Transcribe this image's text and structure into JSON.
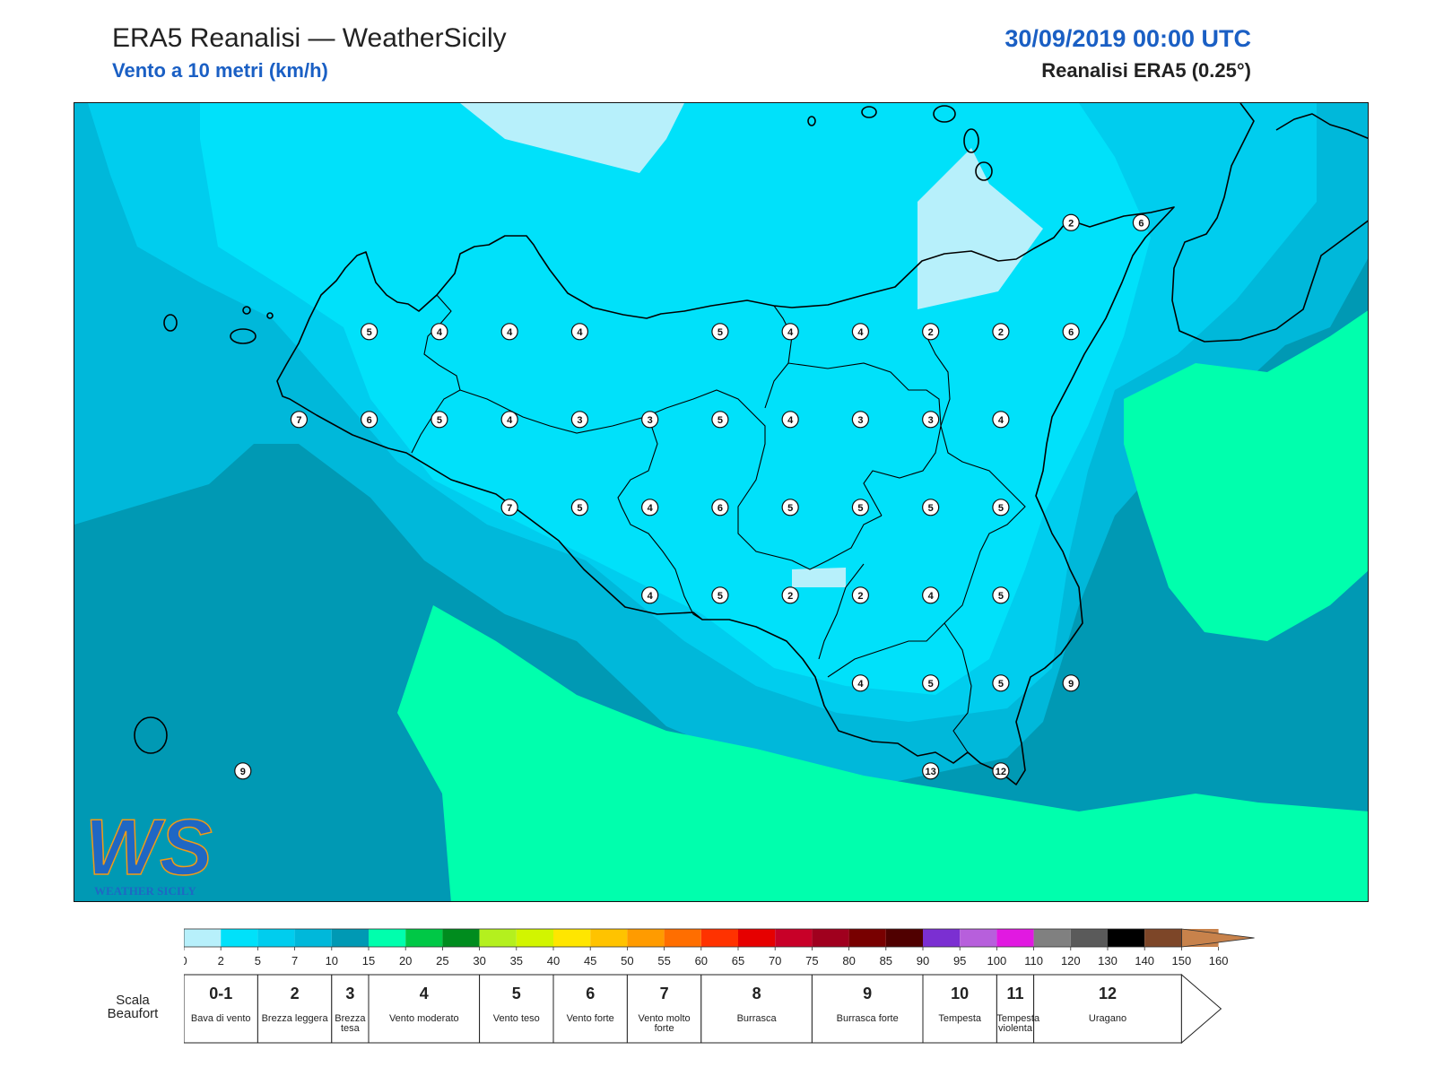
{
  "header": {
    "title": "ERA5 Reanalisi — WeatherSicily",
    "subtitle": "Vento a 10 metri (km/h)",
    "datetime": "30/09/2019 00:00 UTC",
    "model": "Reanalisi ERA5 (0.25°)"
  },
  "logo": {
    "text": "WS",
    "caption": "WEATHER SICILY"
  },
  "colors": {
    "band_0_2": "#b7f0fb",
    "band_2_5": "#00e1fa",
    "band_5_7": "#00cdee",
    "band_7_10": "#00b8da",
    "band_10_15": "#0099b4",
    "band_15_20": "#00ffad",
    "coast": "#000000"
  },
  "wind_labels": [
    {
      "lon": 12.4,
      "lat": 38.02,
      "value": "5"
    },
    {
      "lon": 12.65,
      "lat": 38.02,
      "value": "4"
    },
    {
      "lon": 12.9,
      "lat": 38.02,
      "value": "4"
    },
    {
      "lon": 13.15,
      "lat": 38.02,
      "value": "4"
    },
    {
      "lon": 13.65,
      "lat": 38.02,
      "value": "5"
    },
    {
      "lon": 13.9,
      "lat": 38.02,
      "value": "4"
    },
    {
      "lon": 14.15,
      "lat": 38.02,
      "value": "4"
    },
    {
      "lon": 14.4,
      "lat": 38.02,
      "value": "2"
    },
    {
      "lon": 14.65,
      "lat": 38.02,
      "value": "2"
    },
    {
      "lon": 14.9,
      "lat": 38.02,
      "value": "6"
    },
    {
      "lon": 14.9,
      "lat": 38.33,
      "value": "2"
    },
    {
      "lon": 15.15,
      "lat": 38.33,
      "value": "6"
    },
    {
      "lon": 12.15,
      "lat": 37.77,
      "value": "7"
    },
    {
      "lon": 12.4,
      "lat": 37.77,
      "value": "6"
    },
    {
      "lon": 12.65,
      "lat": 37.77,
      "value": "5"
    },
    {
      "lon": 12.9,
      "lat": 37.77,
      "value": "4"
    },
    {
      "lon": 13.15,
      "lat": 37.77,
      "value": "3"
    },
    {
      "lon": 13.4,
      "lat": 37.77,
      "value": "3"
    },
    {
      "lon": 13.65,
      "lat": 37.77,
      "value": "5"
    },
    {
      "lon": 13.9,
      "lat": 37.77,
      "value": "4"
    },
    {
      "lon": 14.15,
      "lat": 37.77,
      "value": "3"
    },
    {
      "lon": 14.4,
      "lat": 37.77,
      "value": "3"
    },
    {
      "lon": 14.65,
      "lat": 37.77,
      "value": "4"
    },
    {
      "lon": 12.9,
      "lat": 37.52,
      "value": "7"
    },
    {
      "lon": 13.15,
      "lat": 37.52,
      "value": "5"
    },
    {
      "lon": 13.4,
      "lat": 37.52,
      "value": "4"
    },
    {
      "lon": 13.65,
      "lat": 37.52,
      "value": "6"
    },
    {
      "lon": 13.9,
      "lat": 37.52,
      "value": "5"
    },
    {
      "lon": 14.15,
      "lat": 37.52,
      "value": "5"
    },
    {
      "lon": 14.4,
      "lat": 37.52,
      "value": "5"
    },
    {
      "lon": 14.65,
      "lat": 37.52,
      "value": "5"
    },
    {
      "lon": 13.4,
      "lat": 37.27,
      "value": "4"
    },
    {
      "lon": 13.65,
      "lat": 37.27,
      "value": "5"
    },
    {
      "lon": 13.9,
      "lat": 37.27,
      "value": "2"
    },
    {
      "lon": 14.15,
      "lat": 37.27,
      "value": "2"
    },
    {
      "lon": 14.4,
      "lat": 37.27,
      "value": "4"
    },
    {
      "lon": 14.65,
      "lat": 37.27,
      "value": "5"
    },
    {
      "lon": 14.15,
      "lat": 37.02,
      "value": "4"
    },
    {
      "lon": 14.4,
      "lat": 37.02,
      "value": "5"
    },
    {
      "lon": 14.65,
      "lat": 37.02,
      "value": "5"
    },
    {
      "lon": 14.9,
      "lat": 37.02,
      "value": "9"
    },
    {
      "lon": 14.4,
      "lat": 36.77,
      "value": "13"
    },
    {
      "lon": 14.65,
      "lat": 36.77,
      "value": "12"
    },
    {
      "lon": 11.95,
      "lat": 36.77,
      "value": "9"
    }
  ],
  "colorbar": {
    "ticks": [
      "0",
      "2",
      "5",
      "7",
      "10",
      "15",
      "20",
      "25",
      "30",
      "35",
      "40",
      "45",
      "50",
      "55",
      "60",
      "65",
      "70",
      "75",
      "80",
      "85",
      "90",
      "95",
      "100",
      "110",
      "120",
      "130",
      "140",
      "150",
      "160"
    ],
    "colors": [
      "#b7f0fb",
      "#00e1fa",
      "#00cdee",
      "#00b8da",
      "#0099b4",
      "#00ffad",
      "#00c846",
      "#008c1e",
      "#b4f01e",
      "#d2f500",
      "#ffe600",
      "#ffc300",
      "#ff9b00",
      "#ff6e00",
      "#ff3200",
      "#e60000",
      "#c80028",
      "#a0001e",
      "#780000",
      "#500000",
      "#7b2fd2",
      "#b75fdc",
      "#e119e1",
      "#808080",
      "#5a5a5a",
      "#000000",
      "#7d4628",
      "#c8824b"
    ]
  },
  "beaufort": {
    "label": "Scala Beaufort",
    "scale": [
      {
        "num": "0-1",
        "name": "Bava di vento",
        "from": 0,
        "to": 5
      },
      {
        "num": "2",
        "name": "Brezza leggera",
        "from": 5,
        "to": 10
      },
      {
        "num": "3",
        "name": "Brezza tesa",
        "from": 10,
        "to": 15
      },
      {
        "num": "4",
        "name": "Vento moderato",
        "from": 15,
        "to": 30
      },
      {
        "num": "5",
        "name": "Vento teso",
        "from": 30,
        "to": 40
      },
      {
        "num": "6",
        "name": "Vento forte",
        "from": 40,
        "to": 50
      },
      {
        "num": "7",
        "name": "Vento molto forte",
        "from": 50,
        "to": 60
      },
      {
        "num": "8",
        "name": "Burrasca",
        "from": 60,
        "to": 75
      },
      {
        "num": "9",
        "name": "Burrasca forte",
        "from": 75,
        "to": 90
      },
      {
        "num": "10",
        "name": "Tempesta",
        "from": 90,
        "to": 100
      },
      {
        "num": "11",
        "name": "Tempesta violenta",
        "from": 100,
        "to": 110
      },
      {
        "num": "12",
        "name": "Uragano",
        "from": 110,
        "to": 160
      }
    ]
  }
}
